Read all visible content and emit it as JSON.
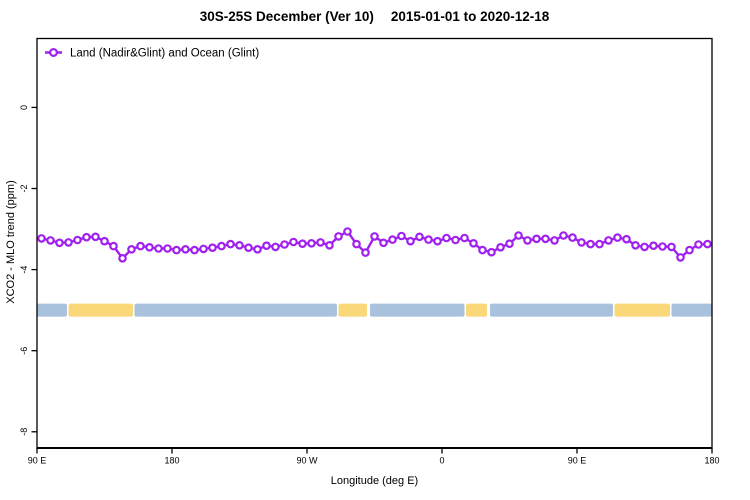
{
  "title": {
    "main": "30S-25S December (Ver 10)",
    "date_range": "2015-01-01 to 2020-12-18"
  },
  "legend": {
    "label": "Land (Nadir&Glint) and Ocean (Glint)"
  },
  "chart_data": {
    "type": "line",
    "title": "30S-25S December (Ver 10)   2015-01-01 to 2020-12-18",
    "xlabel": "Longitude (deg E)",
    "ylabel": "XCO2 - MLO trend (ppm)",
    "x_range_deg": [
      90,
      540
    ],
    "ylim": [
      -8.4,
      1.7
    ],
    "grid": "off",
    "legend_position": "top-left-inside",
    "x_ticks": [
      {
        "label": "90 E",
        "deg": 90
      },
      {
        "label": "180",
        "deg": 180
      },
      {
        "label": "90 W",
        "deg": 270
      },
      {
        "label": "0",
        "deg": 360
      },
      {
        "label": "90 E",
        "deg": 450
      },
      {
        "label": "180",
        "deg": 540
      }
    ],
    "y_ticks": [
      {
        "label": "0",
        "value": 0
      },
      {
        "label": "-2",
        "value": -2
      },
      {
        "label": "-4",
        "value": -4
      },
      {
        "label": "-6",
        "value": -6
      },
      {
        "label": "-8",
        "value": -8
      }
    ],
    "series": [
      {
        "name": "Land (Nadir&Glint) and Ocean (Glint)",
        "color": "#A020F0",
        "marker": "open-circle",
        "x_deg": [
          93,
          99,
          105,
          111,
          117,
          123,
          129,
          135,
          141,
          147,
          153,
          159,
          165,
          171,
          177,
          183,
          189,
          195,
          201,
          207,
          213,
          219,
          225,
          231,
          237,
          243,
          249,
          255,
          261,
          267,
          273,
          279,
          285,
          291,
          297,
          303,
          309,
          315,
          321,
          327,
          333,
          339,
          345,
          351,
          357,
          363,
          369,
          375,
          381,
          387,
          393,
          399,
          405,
          411,
          417,
          423,
          429,
          435,
          441,
          447,
          453,
          459,
          465,
          471,
          477,
          483,
          489,
          495,
          501,
          507,
          513,
          519,
          525,
          531,
          537
        ],
        "y_ppm": [
          -3.23,
          -3.28,
          -3.34,
          -3.33,
          -3.27,
          -3.2,
          -3.19,
          -3.3,
          -3.42,
          -3.72,
          -3.5,
          -3.42,
          -3.45,
          -3.48,
          -3.48,
          -3.52,
          -3.5,
          -3.52,
          -3.49,
          -3.46,
          -3.42,
          -3.37,
          -3.4,
          -3.46,
          -3.5,
          -3.41,
          -3.44,
          -3.38,
          -3.32,
          -3.36,
          -3.35,
          -3.33,
          -3.4,
          -3.18,
          -3.06,
          -3.37,
          -3.58,
          -3.18,
          -3.34,
          -3.26,
          -3.17,
          -3.3,
          -3.19,
          -3.26,
          -3.3,
          -3.22,
          -3.27,
          -3.22,
          -3.35,
          -3.52,
          -3.57,
          -3.45,
          -3.36,
          -3.16,
          -3.28,
          -3.24,
          -3.24,
          -3.28,
          -3.16,
          -3.21,
          -3.33,
          -3.37,
          -3.37,
          -3.28,
          -3.21,
          -3.25,
          -3.4,
          -3.44,
          -3.41,
          -3.43,
          -3.44,
          -3.7,
          -3.52,
          -3.38,
          -3.37
        ]
      }
    ],
    "surface_band": {
      "y_ppm": -5.0,
      "thickness_ppm": 0.32,
      "colors": {
        "ocean": "#A8C1DC",
        "land": "#FAD879"
      },
      "segments": [
        {
          "type": "ocean",
          "from_deg": 90,
          "to_deg": 110
        },
        {
          "type": "land",
          "from_deg": 111,
          "to_deg": 154
        },
        {
          "type": "ocean",
          "from_deg": 155,
          "to_deg": 290
        },
        {
          "type": "land",
          "from_deg": 291,
          "to_deg": 310
        },
        {
          "type": "ocean",
          "from_deg": 312,
          "to_deg": 375
        },
        {
          "type": "land",
          "from_deg": 376,
          "to_deg": 390
        },
        {
          "type": "ocean",
          "from_deg": 392,
          "to_deg": 474
        },
        {
          "type": "land",
          "from_deg": 475,
          "to_deg": 512
        },
        {
          "type": "ocean",
          "from_deg": 513,
          "to_deg": 540
        }
      ]
    }
  }
}
